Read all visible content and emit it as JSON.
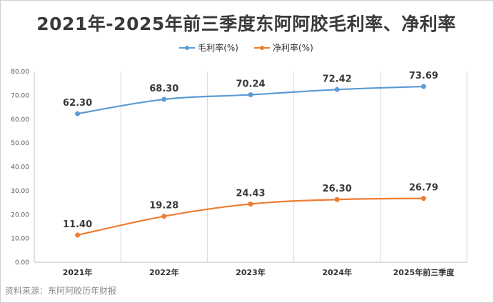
{
  "chart_data": {
    "type": "line",
    "title": "2021年-2025年前三季度东阿阿胶毛利率、净利率",
    "categories": [
      "2021年",
      "2022年",
      "2023年",
      "2024年",
      "2025年前三季度"
    ],
    "series": [
      {
        "name": "毛利率(%)",
        "color": "#5b9bd5",
        "values": [
          62.3,
          68.3,
          70.24,
          72.42,
          73.69
        ],
        "labels": [
          "62.30",
          "68.30",
          "70.24",
          "72.42",
          "73.69"
        ]
      },
      {
        "name": "净利率(%)",
        "color": "#ed7d31",
        "values": [
          11.4,
          19.28,
          24.43,
          26.3,
          26.79
        ],
        "labels": [
          "11.40",
          "19.28",
          "24.43",
          "26.30",
          "26.79"
        ]
      }
    ],
    "y_ticks": [
      "0.00",
      "10.00",
      "20.00",
      "30.00",
      "40.00",
      "50.00",
      "60.00",
      "70.00",
      "80.00"
    ],
    "ylim": [
      0,
      80
    ],
    "legend_position": "top-center",
    "grid": "vertical"
  },
  "source_note": "资料来源：东阿阿胶历年财报"
}
